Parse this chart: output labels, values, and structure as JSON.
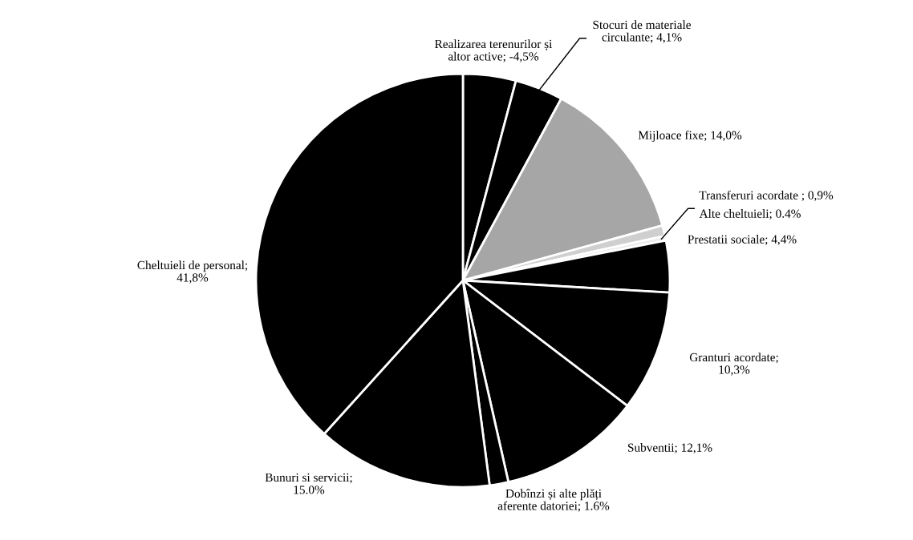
{
  "chart_data": {
    "type": "pie",
    "categories": [
      "Realizarea terenurilor și\naltor active; -4,5%",
      "Stocuri de materiale\ncirculante; 4,1%",
      "Mijloace fixe; 14,0%",
      "Transferuri acordate ; 0,9%",
      "Alte cheltuieli; 0.4%",
      "Prestatii sociale; 4,4%",
      "Granturi acordate;\n10,3%",
      "Subventii; 12,1%",
      "Dobînzi și alte plăți\naferente datoriei; 1.6%",
      "Bunuri si servicii;\n15.0%",
      "Cheltuieli de personal;\n41,8%"
    ],
    "values": [
      4.5,
      4.1,
      14.0,
      0.9,
      0.4,
      4.4,
      10.3,
      12.1,
      1.6,
      15.0,
      41.8
    ],
    "colors": [
      "#000000",
      "#000000",
      "#a6a6a6",
      "#cfcfcf",
      "#ececec",
      "#000000",
      "#000000",
      "#000000",
      "#000000",
      "#000000",
      "#000000"
    ],
    "legend": false
  }
}
